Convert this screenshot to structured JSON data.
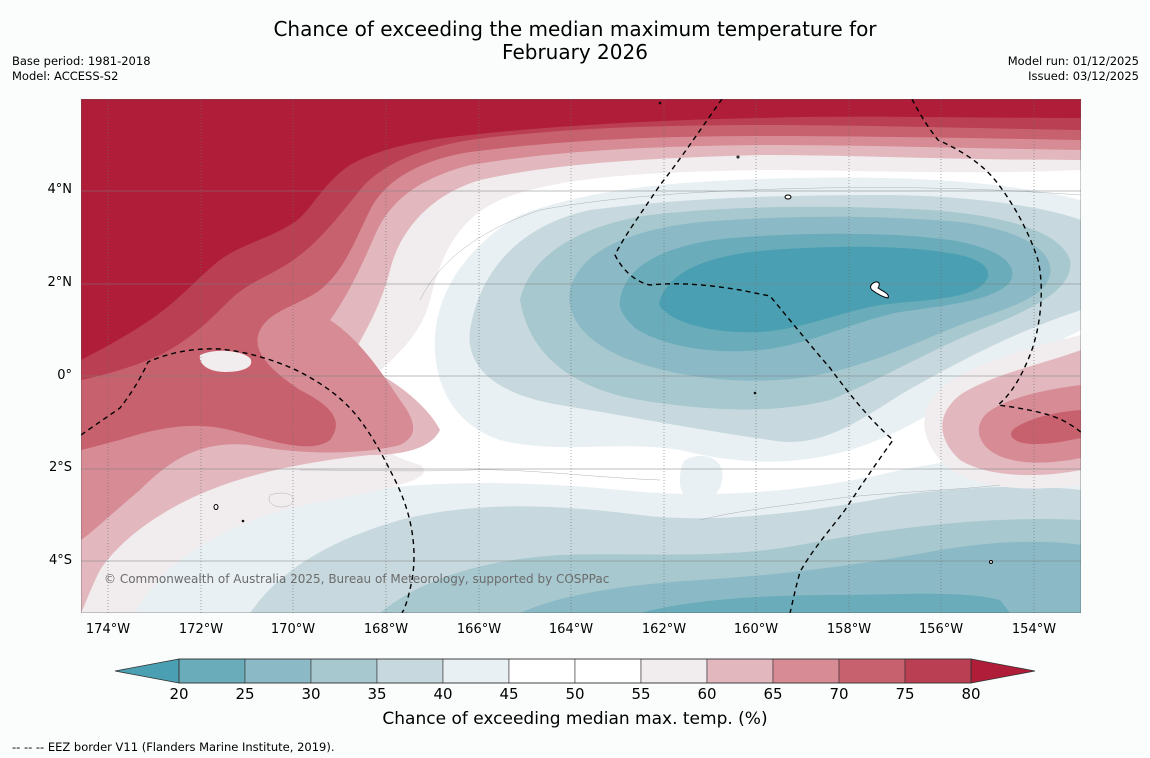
{
  "title_line1": "Chance of exceeding the median maximum temperature for",
  "title_line2": "February 2026",
  "meta_left": [
    "Base period: 1981-2018",
    "Model: ACCESS-S2"
  ],
  "meta_right": [
    "Model run: 01/12/2025",
    "Issued: 03/12/2025"
  ],
  "copyright": "© Commonwealth of Australia 2025, Bureau of Meteorology, supported by COSPPac",
  "lon_labels": [
    "174°W",
    "172°W",
    "170°W",
    "168°W",
    "166°W",
    "164°W",
    "162°W",
    "160°W",
    "158°W",
    "156°W",
    "154°W"
  ],
  "lat_labels": [
    "4°N",
    "2°N",
    "0°",
    "2°S",
    "4°S"
  ],
  "colorbar": {
    "ticks": [
      "20",
      "25",
      "30",
      "35",
      "40",
      "45",
      "50",
      "55",
      "60",
      "65",
      "70",
      "75",
      "80"
    ],
    "colors": [
      "#6aacba",
      "#8bbac6",
      "#a7c8ce",
      "#c7d9de",
      "#e9f0f3",
      "#ffffff",
      "#ffffff",
      "#f1eced",
      "#e2b8be",
      "#d68b95",
      "#c8616e",
      "#ba3f52"
    ],
    "under_color": "#4aa0b2",
    "over_color": "#b01d39",
    "label": "Chance of exceeding median max. temp. (%)"
  },
  "footnote": "-- -- -- EEZ border V11 (Flanders Marine Institute, 2019)."
}
